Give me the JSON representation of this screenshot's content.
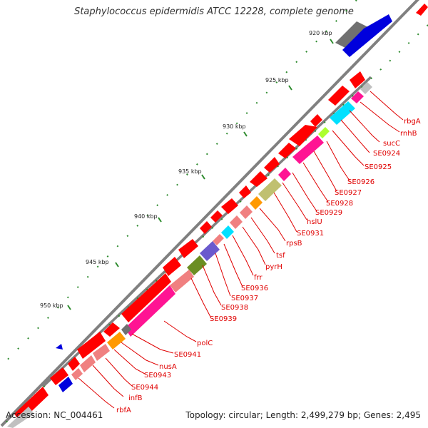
{
  "title": "Staphylococcus epidermidis ATCC 12228, complete genome",
  "accession_text": "Accession: NC_004461",
  "footer_text": "Topology: circular; Length: 2,499,279 bp; Genes: 2,495",
  "ticks": [
    "920 kbp",
    "925 kbp",
    "930 kbp",
    "935 kbp",
    "940 kbp",
    "945 kbp",
    "950 kbp"
  ],
  "gene_labels": [
    "rbgA",
    "rnhB",
    "sucC",
    "SE0924",
    "SE0925",
    "SE0926",
    "SE0927",
    "SE0928",
    "SE0929",
    "hslU",
    "SE0931",
    "rpsB",
    "tsf",
    "pyrH",
    "frr",
    "SE0936",
    "SE0937",
    "SE0938",
    "SE0939",
    "polC",
    "SE0941",
    "nusA",
    "SE0943",
    "SE0944",
    "infB",
    "rbfA"
  ],
  "colors": {
    "cds": "#ff0000",
    "cds_light": "#f08080",
    "rna": "#ff1493",
    "tick_mark": "#2e8b2e",
    "label": "#e00000",
    "backbone": "#808080",
    "reverse_strand": "#0000dd",
    "dark_gene": "#707070",
    "cyan_gene": "#00e0ff",
    "orange_gene": "#ff9900",
    "olive_gene": "#c0c070",
    "purple_gene": "#6a5acd",
    "green_gene": "#6b8e23",
    "lime_gene": "#adff2f",
    "grey_gene": "#c0c0c0"
  }
}
